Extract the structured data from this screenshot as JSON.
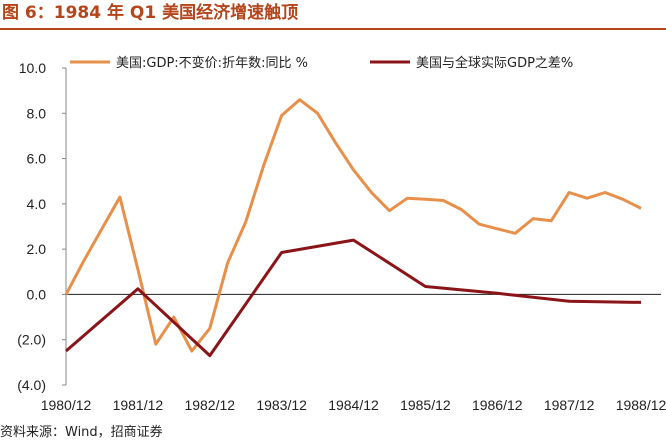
{
  "header": {
    "title": "图 6：1984 年 Q1 美国经济增速触顶"
  },
  "footer": {
    "source": "资料来源：Wind，招商证券"
  },
  "colors": {
    "series1": "#e8904a",
    "series2": "#8b1418",
    "title": "#b5451b"
  },
  "chart_data": {
    "type": "line",
    "x_tick_labels": [
      "1980/12",
      "1981/12",
      "1982/12",
      "1983/12",
      "1984/12",
      "1985/12",
      "1986/12",
      "1987/12",
      "1988/12"
    ],
    "y_tick_labels": [
      "10.0",
      "8.0",
      "6.0",
      "4.0",
      "2.0",
      "0.0",
      "(2.0)",
      "(4.0)"
    ],
    "ylim": [
      -4,
      10
    ],
    "x_unit": "quarters after 1980/12",
    "legend_position": "top",
    "series": [
      {
        "name": "美国:GDP:不变价:折年数:同比 %",
        "x": [
          0,
          1,
          2,
          3,
          4,
          5,
          6,
          7,
          8,
          9,
          10,
          11,
          12,
          13,
          14,
          15,
          16,
          17,
          18,
          19,
          20,
          21,
          22,
          23,
          24,
          25,
          26,
          27,
          28,
          29,
          30,
          31,
          32
        ],
        "values": [
          0.0,
          1.5,
          2.9,
          4.3,
          1.1,
          -2.2,
          -1.0,
          -2.5,
          -1.5,
          1.4,
          3.2,
          5.7,
          7.9,
          8.6,
          8.0,
          6.7,
          5.5,
          4.5,
          3.7,
          4.25,
          4.2,
          4.15,
          3.75,
          3.1,
          2.9,
          2.7,
          3.35,
          3.25,
          4.5,
          4.25,
          4.5,
          4.2,
          3.8
        ]
      },
      {
        "name": "美国与全球实际GDP之差%",
        "x": [
          0,
          4,
          8,
          12,
          16,
          20,
          24,
          28,
          32
        ],
        "values": [
          -2.5,
          0.25,
          -2.7,
          1.85,
          2.4,
          0.35,
          0.05,
          -0.3,
          -0.35
        ]
      }
    ]
  }
}
